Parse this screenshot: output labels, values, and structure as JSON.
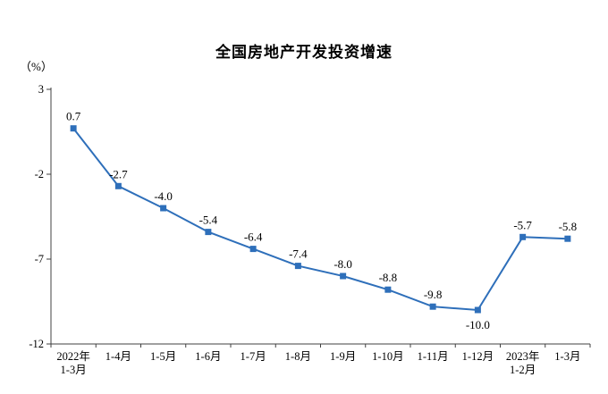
{
  "chart_data": {
    "type": "line",
    "title": "全国房地产开发投资增速",
    "unit_label": "（%）",
    "categories": [
      "2022年\n1-3月",
      "1-4月",
      "1-5月",
      "1-6月",
      "1-7月",
      "1-8月",
      "1-9月",
      "1-10月",
      "1-11月",
      "1-12月",
      "2023年\n1-2月",
      "1-3月"
    ],
    "values": [
      0.7,
      -2.7,
      -4.0,
      -5.4,
      -6.4,
      -7.4,
      -8.0,
      -8.8,
      -9.8,
      -10.0,
      -5.7,
      -5.8
    ],
    "ylim": [
      -12,
      3
    ],
    "yticks": [
      3,
      -2,
      -7,
      -12
    ],
    "line_color": "#2e6fba",
    "axis_color": "#404040",
    "label_position_overrides": {
      "9": "below"
    },
    "legend": "none",
    "grid": "off"
  }
}
